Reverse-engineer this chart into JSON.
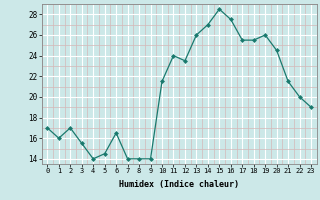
{
  "x": [
    0,
    1,
    2,
    3,
    4,
    5,
    6,
    7,
    8,
    9,
    10,
    11,
    12,
    13,
    14,
    15,
    16,
    17,
    18,
    19,
    20,
    21,
    22,
    23
  ],
  "y": [
    17,
    16,
    17,
    15.5,
    14,
    14.5,
    16.5,
    14,
    14,
    14,
    21.5,
    24,
    23.5,
    26,
    27,
    28.5,
    27.5,
    25.5,
    25.5,
    26,
    24.5,
    21.5,
    20,
    19
  ],
  "line_color": "#1a7a6e",
  "marker_color": "#1a7a6e",
  "bg_color": "#cce8e8",
  "grid_major_color": "#ffffff",
  "grid_minor_color": "#ddeaea",
  "xlabel": "Humidex (Indice chaleur)",
  "ylim": [
    13.5,
    29.0
  ],
  "xlim": [
    -0.5,
    23.5
  ],
  "yticks": [
    14,
    16,
    18,
    20,
    22,
    24,
    26,
    28
  ],
  "xticks": [
    0,
    1,
    2,
    3,
    4,
    5,
    6,
    7,
    8,
    9,
    10,
    11,
    12,
    13,
    14,
    15,
    16,
    17,
    18,
    19,
    20,
    21,
    22,
    23
  ],
  "xtick_labels": [
    "0",
    "1",
    "2",
    "3",
    "4",
    "5",
    "6",
    "7",
    "8",
    "9",
    "10",
    "11",
    "12",
    "13",
    "14",
    "15",
    "16",
    "17",
    "18",
    "19",
    "20",
    "21",
    "22",
    "23"
  ]
}
